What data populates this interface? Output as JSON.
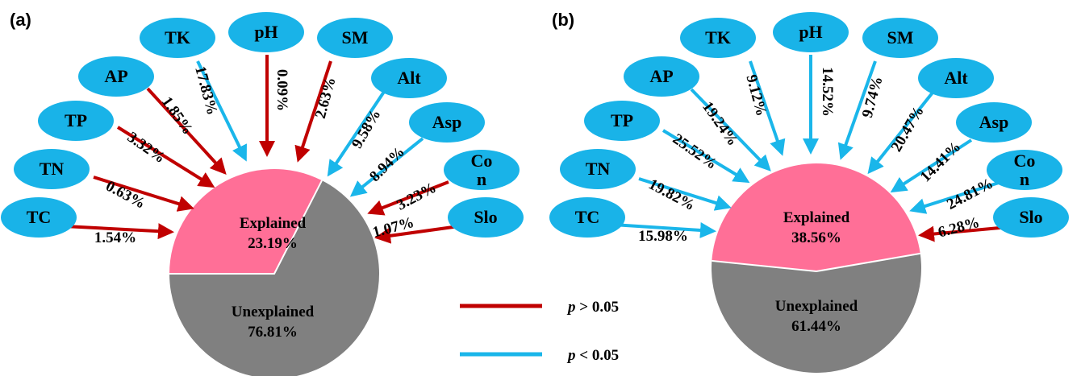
{
  "colors": {
    "node_fill": "#19b3e8",
    "explained": "#ff6f97",
    "unexplained": "#808080",
    "sig_arrow": "#1ab6ea",
    "nonsig_arrow": "#c00000"
  },
  "legend": {
    "nonsig_symbol": "p",
    "nonsig_rest": " > 0.05",
    "sig_symbol": "p",
    "sig_rest": " < 0.05"
  },
  "chart_data": [
    {
      "type": "pie",
      "panel": "(a)",
      "slices": [
        {
          "label": "Explained",
          "value": "23.19%",
          "color": "#ff6f97"
        },
        {
          "label": "Unexplained",
          "value": "76.81%",
          "color": "#808080"
        }
      ],
      "factors": [
        {
          "name": "TC",
          "pct": "1.54%",
          "significant": false
        },
        {
          "name": "TN",
          "pct": "0.63%",
          "significant": false
        },
        {
          "name": "TP",
          "pct": "3.32%",
          "significant": false
        },
        {
          "name": "AP",
          "pct": "1.85%",
          "significant": false
        },
        {
          "name": "TK",
          "pct": "17.83%",
          "significant": true
        },
        {
          "name": "pH",
          "pct": "0.09%",
          "significant": false
        },
        {
          "name": "SM",
          "pct": "2.63%",
          "significant": false
        },
        {
          "name": "Alt",
          "pct": "9.58%",
          "significant": true
        },
        {
          "name": "Asp",
          "pct": "8.94%",
          "significant": true
        },
        {
          "name": "Co\nn",
          "pct": "3.23%",
          "significant": false
        },
        {
          "name": "Slo",
          "pct": "1.07%",
          "significant": false
        }
      ]
    },
    {
      "type": "pie",
      "panel": "(b)",
      "slices": [
        {
          "label": "Explained",
          "value": "38.56%",
          "color": "#ff6f97"
        },
        {
          "label": "Unexplained",
          "value": "61.44%",
          "color": "#808080"
        }
      ],
      "factors": [
        {
          "name": "TC",
          "pct": "15.98%",
          "significant": true
        },
        {
          "name": "TN",
          "pct": "19.82%",
          "significant": true
        },
        {
          "name": "TP",
          "pct": "25.52%",
          "significant": true
        },
        {
          "name": "AP",
          "pct": "19.24%",
          "significant": true
        },
        {
          "name": "TK",
          "pct": "9.12%",
          "significant": true
        },
        {
          "name": "pH",
          "pct": "14.52%",
          "significant": true
        },
        {
          "name": "SM",
          "pct": "9.74%",
          "significant": true
        },
        {
          "name": "Alt",
          "pct": "20.47%",
          "significant": true
        },
        {
          "name": "Asp",
          "pct": "14.41%",
          "significant": true
        },
        {
          "name": "Co\nn",
          "pct": "24.81%",
          "significant": true
        },
        {
          "name": "Slo",
          "pct": "6.28%",
          "significant": false
        }
      ]
    }
  ]
}
